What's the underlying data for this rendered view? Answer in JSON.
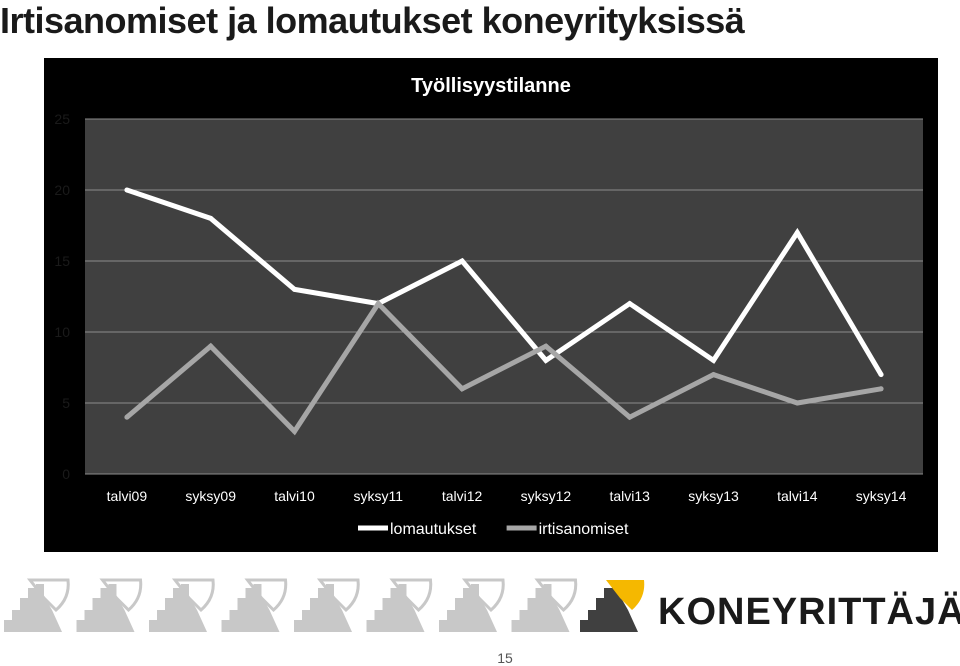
{
  "slide": {
    "title": "Irtisanomiset ja lomautukset koneyrityksissä",
    "page_number": "15"
  },
  "logo": {
    "brand_text": "KONEYRITTÄJÄT",
    "icon": "excavator-bucket-logo",
    "colors": {
      "accent": "#f5b800",
      "dark": "#404040",
      "faded": "#c8c8c8"
    }
  },
  "chart_data": {
    "type": "line",
    "title": "Työllisyystilanne",
    "xlabel": "",
    "ylabel": "",
    "categories": [
      "talvi09",
      "syksy09",
      "talvi10",
      "syksy11",
      "talvi12",
      "syksy12",
      "talvi13",
      "syksy13",
      "talvi14",
      "syksy14"
    ],
    "ylim": [
      0,
      25
    ],
    "yticks": [
      0,
      5,
      10,
      15,
      20,
      25
    ],
    "grid": true,
    "legend_position": "bottom",
    "series": [
      {
        "name": "lomautukset",
        "color": "#ffffff",
        "values": [
          20,
          18,
          13,
          12,
          15,
          8,
          12,
          8,
          17,
          7
        ]
      },
      {
        "name": "irtisanomiset",
        "color": "#a6a6a6",
        "values": [
          4,
          9,
          3,
          12,
          6,
          9,
          4,
          7,
          5,
          6
        ]
      }
    ],
    "colors": {
      "background": "#000000",
      "plot_area": "#404040",
      "gridline": "#8c8c8c",
      "text": "#ffffff"
    }
  }
}
